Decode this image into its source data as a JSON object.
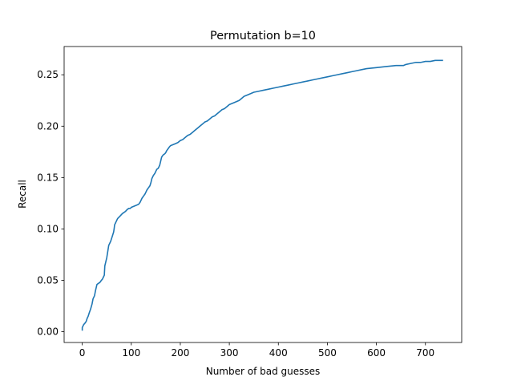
{
  "chart_data": {
    "type": "line",
    "title": "Permutation b=10",
    "xlabel": "Number of bad guesses",
    "ylabel": "Recall",
    "xlim": [
      -37,
      774
    ],
    "ylim": [
      -0.0105,
      0.2775
    ],
    "x_ticks": [
      0,
      100,
      200,
      300,
      400,
      500,
      600,
      700
    ],
    "x_tick_labels": [
      "0",
      "100",
      "200",
      "300",
      "400",
      "500",
      "600",
      "700"
    ],
    "y_ticks": [
      0.0,
      0.05,
      0.1,
      0.15,
      0.2,
      0.25
    ],
    "y_tick_labels": [
      "0.00",
      "0.05",
      "0.10",
      "0.15",
      "0.20",
      "0.25"
    ],
    "grid": false,
    "series": [
      {
        "color": "#1f77b4",
        "x": [
          0,
          0,
          3,
          5,
          8,
          10,
          12,
          14,
          17,
          20,
          22,
          25,
          27,
          30,
          33,
          36,
          39,
          41,
          43,
          45,
          46,
          48,
          50,
          52,
          54,
          56,
          58,
          60,
          62,
          64,
          65,
          66,
          68,
          70,
          72,
          74,
          76,
          78,
          80,
          82,
          85,
          88,
          90,
          92,
          95,
          98,
          100,
          105,
          110,
          115,
          118,
          120,
          122,
          125,
          128,
          130,
          132,
          135,
          138,
          140,
          142,
          145,
          148,
          150,
          152,
          155,
          158,
          160,
          162,
          165,
          168,
          170,
          172,
          175,
          178,
          180,
          185,
          190,
          195,
          200,
          205,
          210,
          215,
          220,
          225,
          230,
          235,
          240,
          245,
          250,
          255,
          260,
          265,
          270,
          275,
          280,
          285,
          290,
          295,
          300,
          310,
          320,
          325,
          330,
          340,
          350,
          360,
          370,
          380,
          390,
          400,
          410,
          420,
          430,
          440,
          450,
          460,
          470,
          480,
          490,
          500,
          510,
          520,
          530,
          540,
          550,
          560,
          570,
          580,
          600,
          620,
          640,
          655,
          660,
          670,
          680,
          690,
          700,
          710,
          720,
          730,
          736
        ],
        "y": [
          0.001,
          0.004,
          0.007,
          0.008,
          0.01,
          0.013,
          0.015,
          0.018,
          0.022,
          0.027,
          0.032,
          0.035,
          0.04,
          0.046,
          0.047,
          0.048,
          0.05,
          0.051,
          0.053,
          0.055,
          0.064,
          0.068,
          0.072,
          0.078,
          0.084,
          0.086,
          0.088,
          0.091,
          0.094,
          0.097,
          0.1,
          0.104,
          0.106,
          0.108,
          0.11,
          0.111,
          0.112,
          0.113,
          0.114,
          0.115,
          0.116,
          0.117,
          0.118,
          0.119,
          0.12,
          0.12,
          0.121,
          0.122,
          0.123,
          0.124,
          0.126,
          0.128,
          0.13,
          0.132,
          0.134,
          0.136,
          0.138,
          0.14,
          0.142,
          0.145,
          0.149,
          0.152,
          0.154,
          0.156,
          0.158,
          0.159,
          0.162,
          0.166,
          0.17,
          0.172,
          0.173,
          0.174,
          0.176,
          0.178,
          0.18,
          0.181,
          0.182,
          0.183,
          0.184,
          0.186,
          0.187,
          0.189,
          0.191,
          0.192,
          0.194,
          0.196,
          0.198,
          0.2,
          0.202,
          0.204,
          0.205,
          0.207,
          0.209,
          0.21,
          0.212,
          0.214,
          0.216,
          0.217,
          0.219,
          0.221,
          0.223,
          0.225,
          0.227,
          0.229,
          0.231,
          0.233,
          0.234,
          0.235,
          0.236,
          0.237,
          0.238,
          0.239,
          0.24,
          0.241,
          0.242,
          0.243,
          0.244,
          0.245,
          0.246,
          0.247,
          0.248,
          0.249,
          0.25,
          0.251,
          0.252,
          0.253,
          0.254,
          0.255,
          0.256,
          0.257,
          0.258,
          0.259,
          0.259,
          0.26,
          0.261,
          0.262,
          0.262,
          0.263,
          0.263,
          0.264,
          0.264,
          0.264
        ]
      }
    ]
  }
}
